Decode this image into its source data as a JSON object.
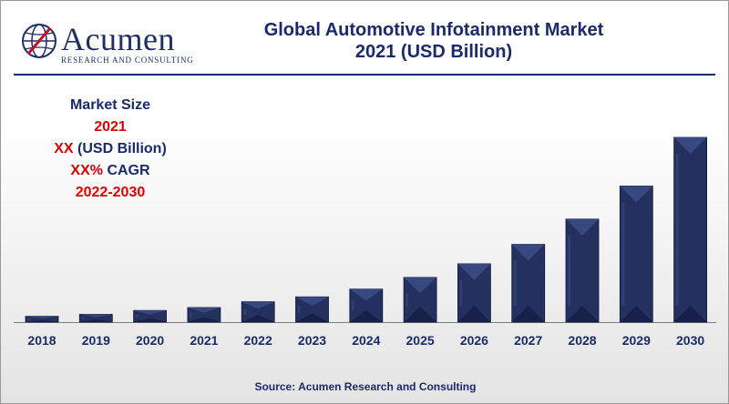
{
  "header": {
    "brand": "Acumen",
    "brand_sub": "RESEARCH AND CONSULTING",
    "title_line1": "Global Automotive Infotainment Market",
    "title_line2": "2021 (USD Billion)"
  },
  "info": {
    "line1": "Market Size",
    "line2": "2021",
    "line3_red": "XX",
    "line3_rest": " (USD Billion)",
    "line4_red": "XX%",
    "line4_rest": " CAGR",
    "line5": "2022-2030"
  },
  "colors": {
    "bar": "#24305e",
    "bar_light": "#3b4c86",
    "bar_dark": "#111a3f",
    "navy": "#1b2a6b",
    "red": "#e00000"
  },
  "chart_data": {
    "type": "bar",
    "categories": [
      "2018",
      "2019",
      "2020",
      "2021",
      "2022",
      "2023",
      "2024",
      "2025",
      "2026",
      "2027",
      "2028",
      "2029",
      "2030"
    ],
    "values": [
      6,
      8,
      12,
      15,
      21,
      26,
      34,
      46,
      60,
      80,
      106,
      140,
      190
    ],
    "ylim": [
      0,
      200
    ],
    "title": "Global Automotive Infotainment Market 2021 (USD Billion)",
    "grid": false,
    "legend": "none"
  },
  "source": "Source: Acumen Research and Consulting"
}
